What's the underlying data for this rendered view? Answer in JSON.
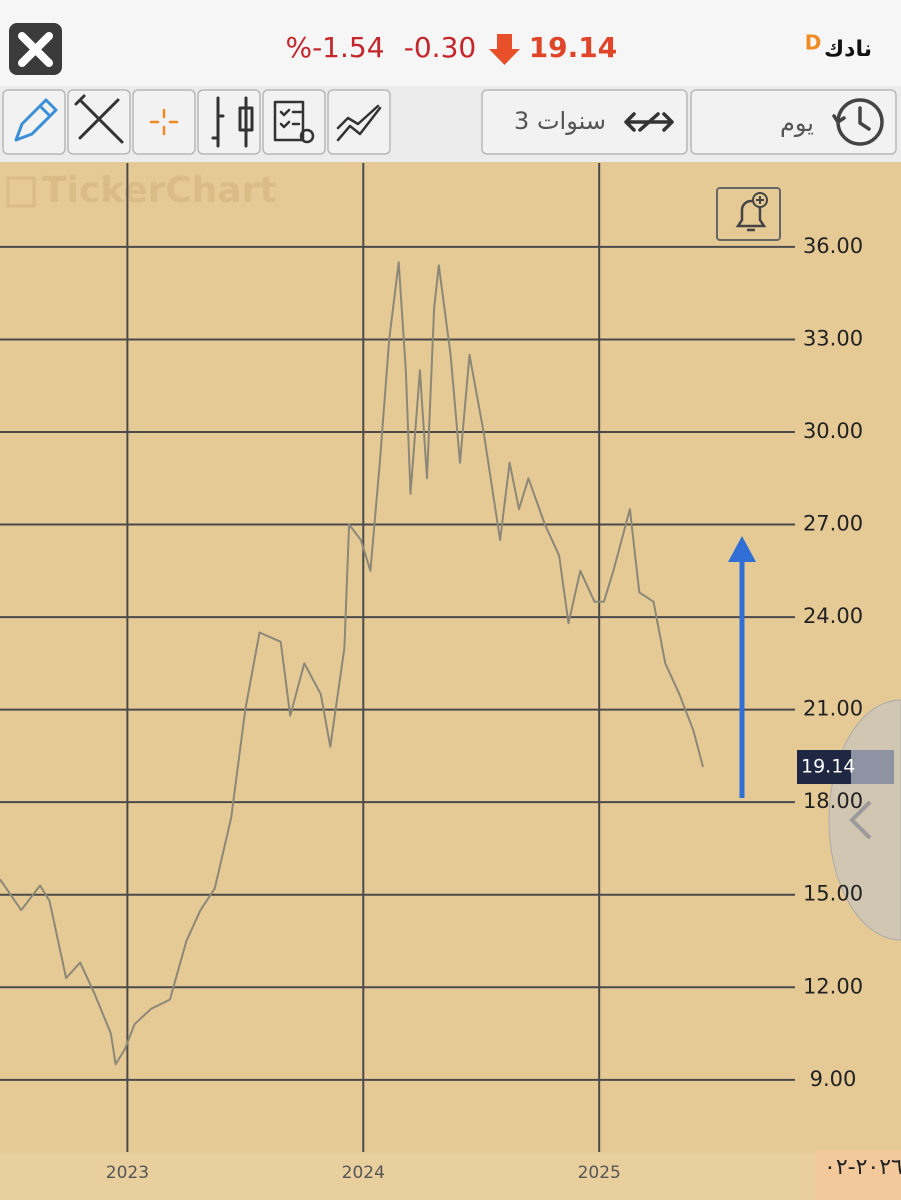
{
  "header": {
    "percent_change": "%-1.54",
    "change": "-0.30",
    "price": "19.14",
    "period_type": "D",
    "symbol": "نادك"
  },
  "toolbar": {
    "range": "3 سنوات",
    "interval": "يوم"
  },
  "watermark": "TickerChart",
  "corner_date": "٢٠٢٦-٠٢",
  "chart_data": {
    "type": "line",
    "x": [
      2022.46,
      2022.55,
      2022.63,
      2022.67,
      2022.74,
      2022.8,
      2022.86,
      2022.93,
      2022.95,
      2022.99,
      2023.03,
      2023.1,
      2023.18,
      2023.25,
      2023.31,
      2023.37,
      2023.44,
      2023.5,
      2023.56,
      2023.65,
      2023.69,
      2023.75,
      2023.82,
      2023.86,
      2023.92,
      2023.94,
      2023.99,
      2024.03,
      2024.07,
      2024.11,
      2024.15,
      2024.18,
      2024.2,
      2024.24,
      2024.27,
      2024.3,
      2024.32,
      2024.37,
      2024.41,
      2024.45,
      2024.51,
      2024.58,
      2024.62,
      2024.66,
      2024.7,
      2024.77,
      2024.83,
      2024.87,
      2024.92,
      2024.98,
      2025.02,
      2025.06,
      2025.13,
      2025.17,
      2025.23,
      2025.28,
      2025.34,
      2025.4,
      2025.44
    ],
    "series": [
      {
        "color": "#8c8878",
        "values": [
          15.5,
          14.5,
          15.3,
          14.8,
          12.3,
          12.8,
          11.8,
          10.5,
          9.5,
          10.0,
          10.8,
          11.3,
          11.6,
          13.5,
          14.5,
          15.2,
          17.5,
          21.0,
          23.5,
          23.2,
          20.8,
          22.5,
          21.5,
          19.8,
          23.0,
          27.0,
          26.5,
          25.5,
          29.0,
          33.0,
          35.5,
          32.0,
          28.0,
          32.0,
          28.5,
          34.0,
          35.4,
          32.5,
          29.0,
          32.5,
          30.0,
          26.5,
          29.0,
          27.5,
          28.5,
          27.0,
          26.0,
          23.8,
          25.5,
          24.5,
          24.5,
          25.5,
          27.5,
          24.8,
          24.5,
          22.5,
          21.5,
          20.3,
          19.14
        ]
      }
    ],
    "xlim": [
      2022.46,
      2025.83
    ],
    "xticks": [
      2023,
      2024,
      2025
    ],
    "ylim": [
      6.66,
      38.72
    ],
    "yticks": [
      {
        "value": 9,
        "label": "9.00"
      },
      {
        "value": 12,
        "label": "12.00"
      },
      {
        "value": 15,
        "label": "15.00"
      },
      {
        "value": 18,
        "label": "18.00"
      },
      {
        "value": 21,
        "label": "21.00"
      },
      {
        "value": 24,
        "label": "24.00"
      },
      {
        "value": 27,
        "label": "27.00"
      },
      {
        "value": 30,
        "label": "30.00"
      },
      {
        "value": 33,
        "label": "33.00"
      },
      {
        "value": 36,
        "label": "36.00"
      }
    ],
    "grid": true
  }
}
